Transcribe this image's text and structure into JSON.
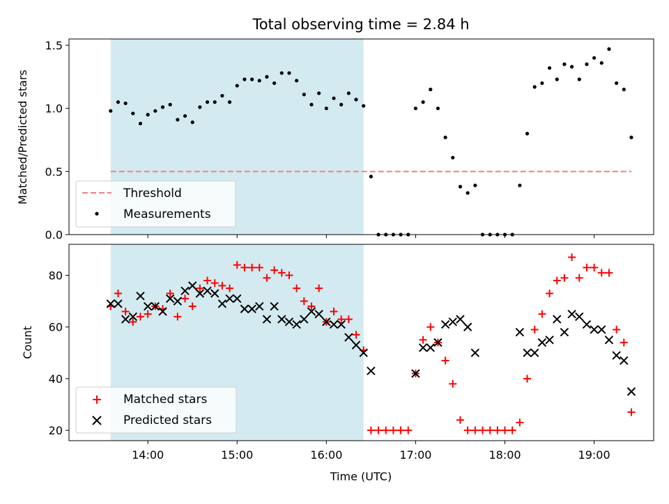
{
  "title": "Total observing time = 2.84 h",
  "xlabel": "Time (UTC)",
  "x_ticks": [
    "14:00",
    "15:00",
    "16:00",
    "17:00",
    "18:00",
    "19:00"
  ],
  "colors": {
    "shade": "#d3ebf0",
    "threshold": "#f08080",
    "measurements": "#000000",
    "matched": "#ff0000",
    "predicted": "#000000"
  },
  "chart_data": [
    {
      "type": "scatter",
      "ylabel": "Matched/Predicted stars",
      "ylim": [
        0,
        1.55
      ],
      "y_ticks": [
        "0.0",
        "0.5",
        "1.0",
        "1.5"
      ],
      "shaded_span": [
        "13:35",
        "16:25"
      ],
      "legend": {
        "position": "lower-left",
        "entries": [
          "Threshold",
          "Measurements"
        ]
      },
      "threshold": {
        "name": "Threshold",
        "value": 0.5,
        "x": [
          "13:35",
          "19:25"
        ]
      },
      "series": [
        {
          "name": "Measurements",
          "x": [
            "13:35",
            "13:40",
            "13:45",
            "13:50",
            "13:55",
            "14:00",
            "14:05",
            "14:10",
            "14:15",
            "14:20",
            "14:25",
            "14:30",
            "14:35",
            "14:40",
            "14:45",
            "14:50",
            "14:55",
            "15:00",
            "15:05",
            "15:10",
            "15:15",
            "15:20",
            "15:25",
            "15:30",
            "15:35",
            "15:40",
            "15:45",
            "15:50",
            "15:55",
            "16:00",
            "16:05",
            "16:10",
            "16:15",
            "16:20",
            "16:25",
            "16:30",
            "16:35",
            "16:40",
            "16:45",
            "16:50",
            "16:55",
            "17:00",
            "17:05",
            "17:10",
            "17:15",
            "17:20",
            "17:25",
            "17:30",
            "17:35",
            "17:40",
            "17:45",
            "17:50",
            "17:55",
            "18:00",
            "18:05",
            "18:10",
            "18:15",
            "18:20",
            "18:25",
            "18:30",
            "18:35",
            "18:40",
            "18:45",
            "18:50",
            "18:55",
            "19:00",
            "19:05",
            "19:10",
            "19:15",
            "19:20",
            "19:25"
          ],
          "y": [
            0.98,
            1.05,
            1.04,
            0.96,
            0.88,
            0.95,
            0.98,
            1.01,
            1.03,
            0.91,
            0.94,
            0.89,
            1.01,
            1.05,
            1.05,
            1.1,
            1.05,
            1.18,
            1.23,
            1.23,
            1.22,
            1.25,
            1.2,
            1.28,
            1.28,
            1.22,
            1.11,
            1.03,
            1.12,
            1.0,
            1.08,
            1.03,
            1.12,
            1.07,
            1.02,
            0.46,
            0.0,
            0.0,
            0.0,
            0.0,
            0.0,
            1.0,
            1.05,
            1.15,
            1.0,
            0.77,
            0.61,
            0.38,
            0.33,
            0.39,
            0.0,
            0.0,
            0.0,
            0.0,
            0.0,
            0.39,
            0.8,
            1.17,
            1.2,
            1.32,
            1.23,
            1.35,
            1.33,
            1.23,
            1.35,
            1.4,
            1.36,
            1.47,
            1.2,
            1.15,
            0.77
          ]
        }
      ]
    },
    {
      "type": "scatter",
      "ylabel": "Count",
      "ylim": [
        16,
        92
      ],
      "y_ticks": [
        "20",
        "40",
        "60",
        "80"
      ],
      "shaded_span": [
        "13:35",
        "16:25"
      ],
      "legend": {
        "position": "lower-left",
        "entries": [
          "Matched stars",
          "Predicted stars"
        ]
      },
      "series": [
        {
          "name": "Matched stars",
          "x": [
            "13:35",
            "13:40",
            "13:45",
            "13:50",
            "13:55",
            "14:00",
            "14:05",
            "14:10",
            "14:15",
            "14:20",
            "14:25",
            "14:30",
            "14:35",
            "14:40",
            "14:45",
            "14:50",
            "14:55",
            "15:00",
            "15:05",
            "15:10",
            "15:15",
            "15:20",
            "15:25",
            "15:30",
            "15:35",
            "15:40",
            "15:45",
            "15:50",
            "15:55",
            "16:00",
            "16:05",
            "16:10",
            "16:15",
            "16:20",
            "16:25",
            "16:30",
            "16:35",
            "16:40",
            "16:45",
            "16:50",
            "16:55",
            "17:00",
            "17:05",
            "17:10",
            "17:15",
            "17:20",
            "17:25",
            "17:30",
            "17:35",
            "17:40",
            "17:45",
            "17:50",
            "17:55",
            "18:00",
            "18:05",
            "18:10",
            "18:15",
            "18:20",
            "18:25",
            "18:30",
            "18:35",
            "18:40",
            "18:45",
            "18:50",
            "18:55",
            "19:00",
            "19:05",
            "19:10",
            "19:15",
            "19:20",
            "19:25"
          ],
          "y": [
            68,
            73,
            66,
            62,
            64,
            65,
            68,
            67,
            73,
            64,
            71,
            68,
            75,
            78,
            77,
            76,
            75,
            84,
            83,
            83,
            83,
            79,
            82,
            81,
            80,
            75,
            70,
            68,
            75,
            62,
            66,
            63,
            63,
            57,
            51,
            20,
            20,
            20,
            20,
            20,
            20,
            42,
            55,
            60,
            54,
            47,
            38,
            24,
            20,
            20,
            20,
            20,
            20,
            20,
            20,
            23,
            40,
            59,
            65,
            73,
            78,
            79,
            87,
            79,
            83,
            83,
            81,
            81,
            59,
            54,
            27
          ]
        },
        {
          "name": "Predicted stars",
          "x": [
            "13:35",
            "13:40",
            "13:45",
            "13:50",
            "13:55",
            "14:00",
            "14:05",
            "14:10",
            "14:15",
            "14:20",
            "14:25",
            "14:30",
            "14:35",
            "14:40",
            "14:45",
            "14:50",
            "14:55",
            "15:00",
            "15:05",
            "15:10",
            "15:15",
            "15:20",
            "15:25",
            "15:30",
            "15:35",
            "15:40",
            "15:45",
            "15:50",
            "15:55",
            "16:00",
            "16:05",
            "16:10",
            "16:15",
            "16:20",
            "16:25",
            "16:30",
            "17:00",
            "17:05",
            "17:10",
            "17:15",
            "17:20",
            "17:25",
            "17:30",
            "17:35",
            "17:40",
            "18:10",
            "18:15",
            "18:20",
            "18:25",
            "18:30",
            "18:35",
            "18:40",
            "18:45",
            "18:50",
            "18:55",
            "19:00",
            "19:05",
            "19:10",
            "19:15",
            "19:20",
            "19:25"
          ],
          "y": [
            69,
            69,
            63,
            64,
            72,
            68,
            68,
            66,
            71,
            70,
            74,
            76,
            73,
            74,
            73,
            69,
            71,
            71,
            67,
            67,
            68,
            63,
            68,
            63,
            62,
            61,
            63,
            66,
            65,
            62,
            61,
            61,
            56,
            53,
            50,
            43,
            42,
            52,
            52,
            54,
            61,
            62,
            63,
            60,
            50,
            58,
            50,
            50,
            54,
            55,
            63,
            58,
            65,
            64,
            61,
            59,
            59,
            55,
            49,
            47,
            35
          ]
        }
      ]
    }
  ]
}
